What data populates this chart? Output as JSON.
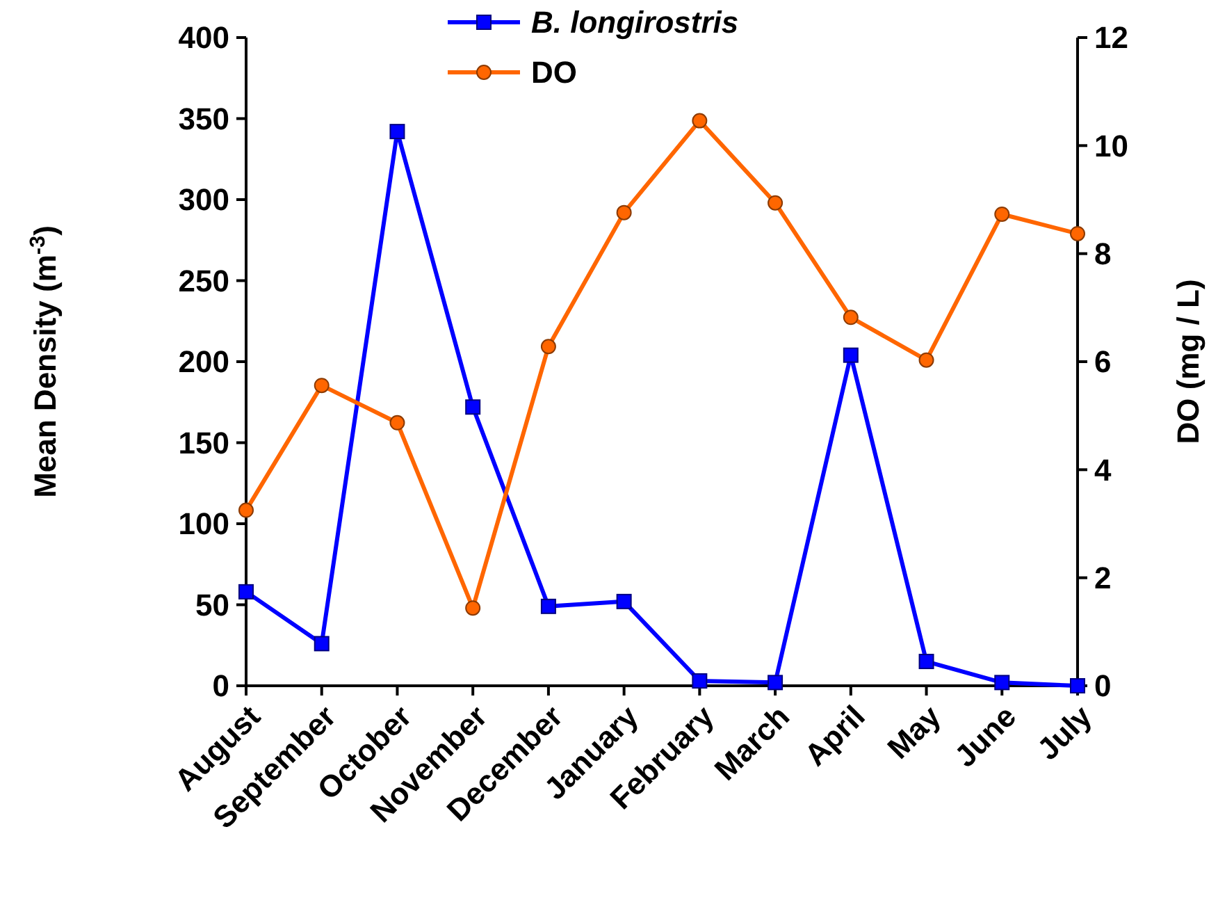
{
  "chart_data": {
    "type": "line",
    "categories": [
      "August",
      "September",
      "October",
      "November",
      "December",
      "January",
      "February",
      "March",
      "April",
      "May",
      "June",
      "July"
    ],
    "ylabel": "Mean Density (m$^{-3}$)",
    "y2label": "DO (mg / L)",
    "ylim": [
      0,
      400
    ],
    "yticks": [
      0,
      50,
      100,
      150,
      200,
      250,
      300,
      350,
      400
    ],
    "y2lim": [
      0,
      12
    ],
    "y2ticks": [
      0,
      2,
      4,
      6,
      8,
      10,
      12
    ],
    "grid": false,
    "legend": "top",
    "series": [
      {
        "name": "B. longirostris",
        "color": "#0000ff",
        "marker": "square",
        "values": [
          58,
          26,
          342,
          172,
          49,
          52,
          3,
          2,
          204,
          15,
          2,
          0
        ]
      },
      {
        "name": "DO",
        "color": "#ff6600",
        "marker": "circle",
        "axis": "y2",
        "values": [
          3.25,
          5.56,
          4.87,
          1.44,
          6.28,
          8.76,
          10.46,
          8.94,
          6.82,
          6.03,
          8.73,
          8.37
        ]
      }
    ]
  }
}
